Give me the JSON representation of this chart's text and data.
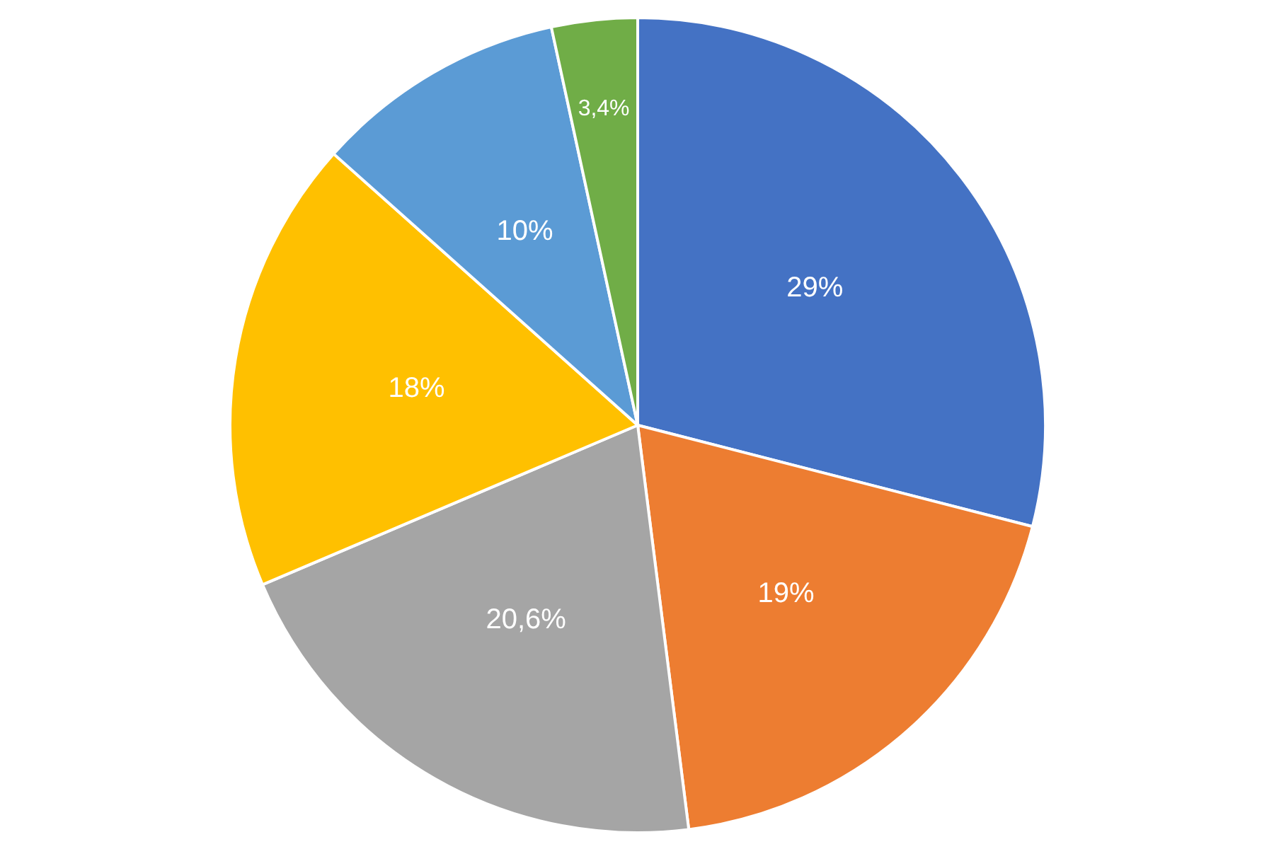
{
  "chart_data": {
    "type": "pie",
    "categories": [
      null,
      null,
      null,
      null,
      null,
      null
    ],
    "values": [
      29,
      19,
      20.6,
      18,
      10,
      3.4
    ],
    "colors": [
      "#4472c4",
      "#ed7d31",
      "#a5a5a5",
      "#ffc000",
      "#5b9bd5",
      "#70ad47"
    ],
    "value_labels": [
      "29%",
      "19%",
      "20,6%",
      "18%",
      "10%",
      "3,4%"
    ]
  }
}
